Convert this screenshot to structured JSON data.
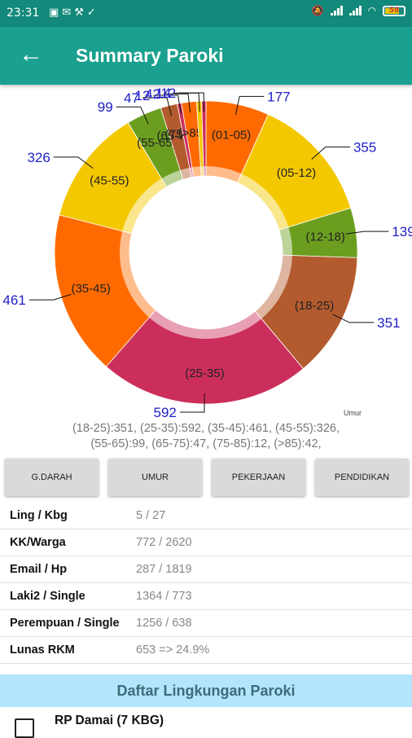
{
  "status_bar": {
    "time": "23:31",
    "battery": "58",
    "notification_icons": [
      "image-icon",
      "mail-icon",
      "wrench-icon",
      "check-icon"
    ],
    "right_icons": [
      "mute-icon",
      "signal-icon",
      "signal-icon",
      "wifi-icon",
      "battery-icon"
    ]
  },
  "app_bar": {
    "title": "Summary Paroki",
    "back_icon": "arrow-left-icon"
  },
  "chart_data": {
    "type": "pie",
    "donut": true,
    "description": "Umur",
    "slices": [
      {
        "label": "(01-05)",
        "value": 177,
        "color": "#fe6a00"
      },
      {
        "label": "(05-12)",
        "value": 355,
        "color": "#f4c800"
      },
      {
        "label": "(12-18)",
        "value": 139,
        "color": "#6b9e1f"
      },
      {
        "label": "(18-25)",
        "value": 351,
        "color": "#b35b2e"
      },
      {
        "label": "(25-35)",
        "value": 592,
        "color": "#cc2e5b"
      },
      {
        "label": "(35-45)",
        "value": 461,
        "color": "#fe6a00"
      },
      {
        "label": "(45-55)",
        "value": 326,
        "color": "#f4c800"
      },
      {
        "label": "(55-65)",
        "value": 99,
        "color": "#6b9e1f"
      },
      {
        "label": "(65-75)",
        "value": 47,
        "color": "#b35b2e"
      },
      {
        "label": "(75-85)",
        "value": 12,
        "color": "#cc2e5b"
      },
      {
        "label": "(>85)",
        "value": 42,
        "color": "#fe6a00"
      },
      {
        "label": "",
        "value": 14,
        "color": "#f4c800"
      },
      {
        "label": "",
        "value": 12,
        "color": "#cc2e5b"
      }
    ]
  },
  "summary": {
    "line1": "(18-25):351, (25-35):592, (35-45):461, (45-55):326,",
    "line2": "(55-65):99, (65-75):47, (75-85):12, (>85):42,"
  },
  "buttons": [
    "G.DARAH",
    "UMUR",
    "PEKERJAAN",
    "PENDIDIKAN"
  ],
  "stats": [
    {
      "label": "Ling / Kbg",
      "value": "5 / 27"
    },
    {
      "label": "KK/Warga",
      "value": "772 / 2620"
    },
    {
      "label": "Email / Hp",
      "value": "287 / 1819"
    },
    {
      "label": "Laki2 / Single",
      "value": "1364 / 773"
    },
    {
      "label": "Perempuan / Single",
      "value": "1256 / 638"
    },
    {
      "label": "Lunas RKM",
      "value": "653  => 24.9%"
    }
  ],
  "list": {
    "header": "Daftar Lingkungan Paroki",
    "items": [
      {
        "name": "RP Damai (7 KBG)",
        "checked": false
      }
    ]
  }
}
